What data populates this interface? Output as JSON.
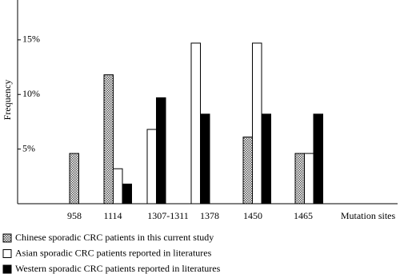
{
  "chart_data": {
    "type": "bar",
    "y_label": "Frequency",
    "x_label": "Mutation sites",
    "categories": [
      "958",
      "1114",
      "1307-1311",
      "1378",
      "1450",
      "1465"
    ],
    "series": [
      {
        "name": "Chinese sporadic CRC patients in this current study",
        "color": "hatch",
        "values": [
          4.6,
          11.8,
          null,
          null,
          6.1,
          4.6
        ]
      },
      {
        "name": "Asian sporadic CRC patients reported in literatures",
        "color": "#ffffff",
        "values": [
          null,
          3.2,
          6.8,
          14.7,
          14.7,
          4.6
        ]
      },
      {
        "name": "Western sporadic CRC patients reported in literatures",
        "color": "#000000",
        "values": [
          null,
          1.8,
          9.7,
          8.2,
          8.2,
          8.2
        ]
      }
    ],
    "ylim": [
      0,
      18.5
    ],
    "yticks": [
      {
        "value": 5,
        "label": "5%"
      },
      {
        "value": 10,
        "label": "10%"
      },
      {
        "value": 15,
        "label": "15%"
      }
    ]
  }
}
